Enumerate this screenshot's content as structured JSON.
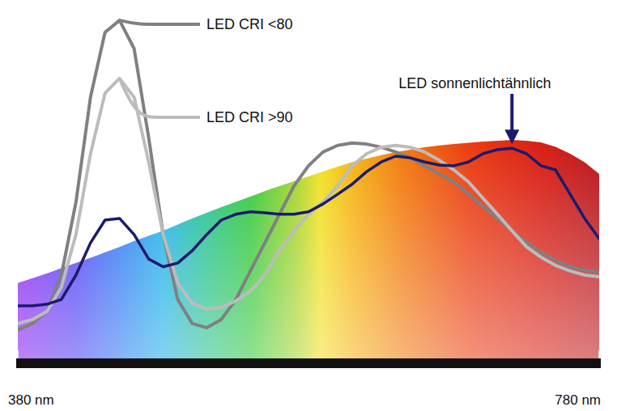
{
  "chart_data": {
    "type": "line",
    "x": [
      380,
      390,
      400,
      410,
      420,
      430,
      440,
      450,
      460,
      470,
      480,
      490,
      500,
      510,
      520,
      530,
      540,
      550,
      560,
      570,
      580,
      590,
      600,
      610,
      620,
      630,
      640,
      650,
      660,
      670,
      680,
      690,
      700,
      710,
      720,
      730,
      740,
      750,
      760,
      770,
      780
    ],
    "xlim": [
      380,
      780
    ],
    "ylim": [
      0,
      100
    ],
    "xticks": [
      {
        "value": 380,
        "label": "380 nm"
      },
      {
        "value": 780,
        "label": "780 nm"
      }
    ],
    "tick_labels": "x",
    "grid": false,
    "series": [
      {
        "type": "area",
        "color": "spectrum",
        "values": [
          22.4,
          23.8,
          25.2,
          26.7,
          28.2,
          29.7,
          31.3,
          32.9,
          34.6,
          36.1,
          37.6,
          39.4,
          41.2,
          42.8,
          44.5,
          46.0,
          47.5,
          49.1,
          50.6,
          52.0,
          53.4,
          54.8,
          56.2,
          57.5,
          58.6,
          59.6,
          60.5,
          61.2,
          61.9,
          62.4,
          62.8,
          63.2,
          63.5,
          63.8,
          64.0,
          63.8,
          63.3,
          62.0,
          60.0,
          57.5,
          54.1
        ]
      },
      {
        "name": "LED CRI <80",
        "type": "line",
        "color": "#808080",
        "values": [
          8.7,
          10.6,
          14.1,
          24.7,
          45.9,
          76.5,
          95.3,
          98.8,
          90.6,
          64.7,
          36.5,
          17.6,
          10.6,
          9.4,
          11.8,
          17.6,
          25.9,
          34.1,
          42.4,
          50.6,
          56.5,
          60.5,
          62.4,
          63.1,
          62.8,
          61.9,
          60.5,
          58.8,
          56.5,
          54.1,
          51.8,
          48.2,
          44.7,
          41.2,
          37.6,
          34.1,
          31.3,
          28.9,
          27.1,
          26.1,
          25.6
        ]
      },
      {
        "name": "LED CRI >90",
        "type": "line",
        "color": "#bcbcbc",
        "values": [
          10.6,
          11.8,
          14.1,
          21.2,
          36.5,
          60.0,
          77.6,
          81.9,
          76.5,
          57.6,
          36.5,
          22.4,
          16.5,
          14.8,
          15.3,
          17.2,
          20.0,
          24.7,
          31.8,
          37.6,
          42.4,
          45.9,
          50.6,
          56.5,
          60.0,
          61.9,
          62.4,
          61.9,
          60.5,
          58.1,
          55.3,
          51.8,
          47.1,
          42.4,
          37.6,
          32.9,
          29.9,
          27.5,
          25.9,
          24.7,
          24.2
        ]
      },
      {
        "name": "LED sonnenlichtähnlich",
        "type": "line",
        "color": "#1b1b6b",
        "values": [
          15.8,
          15.8,
          16.2,
          17.6,
          24.7,
          34.1,
          40.7,
          41.2,
          36.5,
          29.4,
          27.1,
          28.2,
          31.8,
          36.5,
          40.7,
          42.4,
          43.1,
          42.8,
          42.4,
          42.4,
          43.1,
          45.4,
          48.2,
          51.1,
          54.8,
          57.6,
          59.3,
          58.8,
          57.6,
          56.7,
          56.5,
          57.6,
          60.0,
          61.2,
          61.6,
          60.0,
          56.5,
          55.3,
          48.2,
          41.2,
          35.3
        ]
      }
    ]
  }
}
